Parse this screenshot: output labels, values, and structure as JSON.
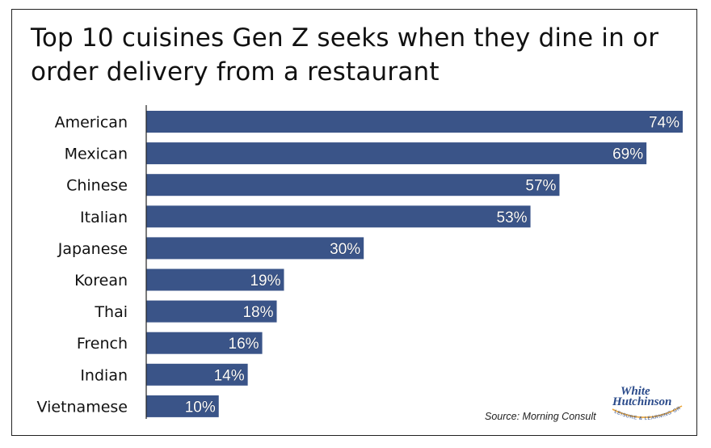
{
  "chart_data": {
    "type": "bar",
    "orientation": "horizontal",
    "title": "Top 10 cuisines Gen Z seeks when they dine in or order delivery from a restaurant",
    "categories": [
      "American",
      "Mexican",
      "Chinese",
      "Italian",
      "Japanese",
      "Korean",
      "Thai",
      "French",
      "Indian",
      "Vietnamese"
    ],
    "values": [
      74,
      69,
      57,
      53,
      30,
      19,
      18,
      16,
      14,
      10
    ],
    "value_labels": [
      "74%",
      "69%",
      "57%",
      "53%",
      "30%",
      "19%",
      "18%",
      "16%",
      "14%",
      "10%"
    ],
    "xlim": [
      0,
      74
    ],
    "grid": false,
    "bar_color": "#3a5488"
  },
  "source": "Source: Morning Consult",
  "logo": {
    "line1": "White",
    "line2": "Hutchinson",
    "tagline": "LEISURE & LEARNING GROUP"
  }
}
